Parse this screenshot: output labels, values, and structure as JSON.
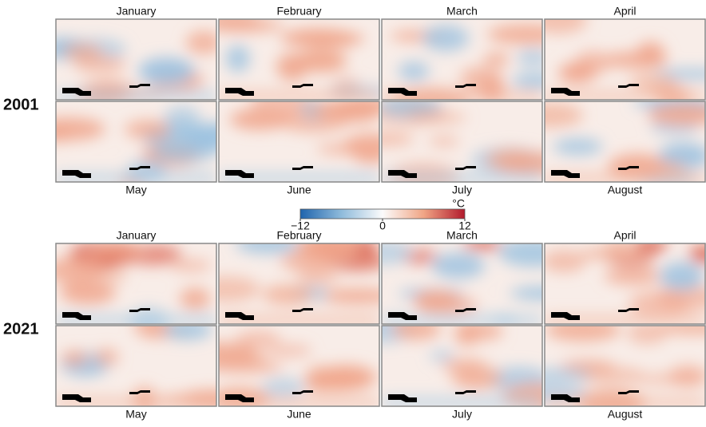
{
  "colorbar": {
    "unit": "°C",
    "lim": [
      -12,
      12
    ],
    "ticks": [
      {
        "value": -12,
        "label": "−12"
      },
      0,
      12
    ]
  },
  "groups": [
    {
      "year": "2001",
      "months": [
        "January",
        "February",
        "March",
        "April",
        "May",
        "June",
        "July",
        "August"
      ]
    },
    {
      "year": "2021",
      "months": [
        "January",
        "February",
        "March",
        "April",
        "May",
        "June",
        "July",
        "August"
      ]
    }
  ]
}
